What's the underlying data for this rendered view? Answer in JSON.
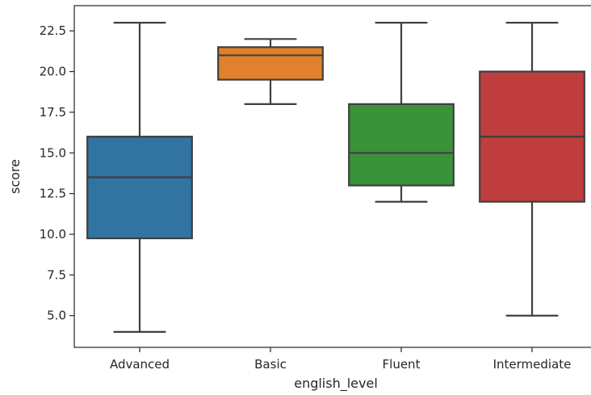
{
  "chart_data": {
    "type": "box",
    "xlabel": "english_level",
    "ylabel": "score",
    "ylim": [
      3.05,
      24.05
    ],
    "yticks": [
      "5.0",
      "7.5",
      "10.0",
      "12.5",
      "15.0",
      "17.5",
      "20.0",
      "22.5"
    ],
    "grid": false,
    "categories": [
      "Advanced",
      "Basic",
      "Fluent",
      "Intermediate"
    ],
    "boxes": [
      {
        "category": "Advanced",
        "min": 4,
        "q1": 9.75,
        "median": 13.5,
        "q3": 16,
        "max": 23,
        "color": "#3274a1"
      },
      {
        "category": "Basic",
        "min": 18,
        "q1": 19.5,
        "median": 21,
        "q3": 21.5,
        "max": 22,
        "color": "#e1812c"
      },
      {
        "category": "Fluent",
        "min": 12,
        "q1": 13,
        "median": 15,
        "q3": 18,
        "max": 23,
        "color": "#3a923a"
      },
      {
        "category": "Intermediate",
        "min": 5,
        "q1": 12,
        "median": 16,
        "q3": 20,
        "max": 23,
        "color": "#c03d3e"
      }
    ]
  }
}
